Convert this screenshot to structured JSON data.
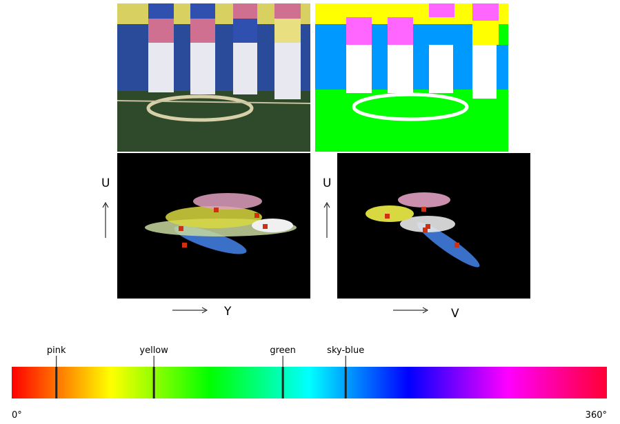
{
  "plots": [
    {
      "vertical_axis": "U",
      "horizontal_axis": "Y"
    },
    {
      "vertical_axis": "U",
      "horizontal_axis": "V"
    }
  ],
  "hue_bar": {
    "xlim": [
      0,
      360
    ],
    "xticks": [
      {
        "value": 0,
        "label": "0°"
      },
      {
        "value": 360,
        "label": "360°"
      }
    ],
    "markers": [
      {
        "label": "pink",
        "value": 27
      },
      {
        "label": "yellow",
        "value": 86
      },
      {
        "label": "green",
        "value": 164
      },
      {
        "label": "sky-blue",
        "value": 202
      }
    ]
  }
}
